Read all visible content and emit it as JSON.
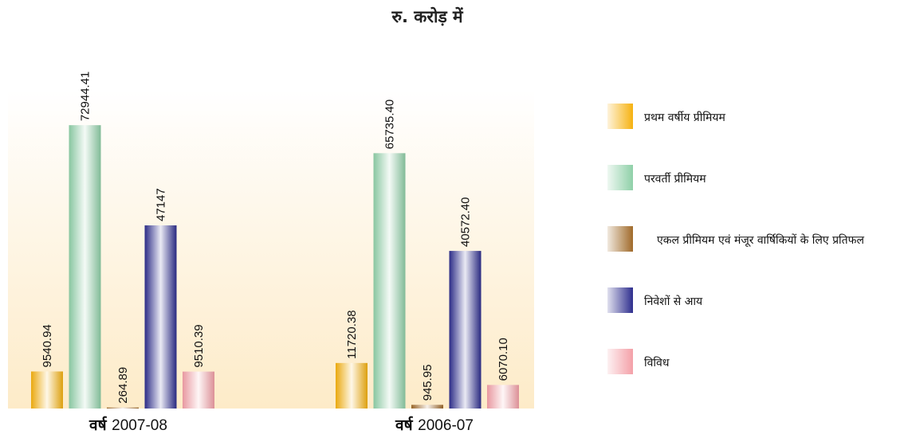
{
  "chart_data": {
    "type": "bar",
    "title": "रु. करोड़ में",
    "category_prefix": "वर्ष",
    "categories": [
      "2007-08",
      "2006-07"
    ],
    "ylim": [
      0,
      82000
    ],
    "grid": false,
    "legend_position": "right",
    "series": [
      {
        "name": "प्रथम वर्षीय प्रीमियम",
        "values": [
          9540.94,
          11720.38
        ],
        "labels": [
          "9540.94",
          "11720.38"
        ],
        "color": "#f6b210"
      },
      {
        "name": "परवर्ती प्रीमियम",
        "values": [
          72944.41,
          65735.4
        ],
        "labels": [
          "72944.41",
          "65735.40"
        ],
        "color": "#8fd0a8"
      },
      {
        "name": "एकल प्रीमियम एवं मंजूर वार्षिकियों के लिए प्रतिफल",
        "values": [
          264.89,
          945.95
        ],
        "labels": [
          "264.89",
          "945.95"
        ],
        "color": "#a06a2a"
      },
      {
        "name": "निवेशों से आय",
        "values": [
          47147,
          40572.4
        ],
        "labels": [
          "47147",
          "40572.40"
        ],
        "color": "#2e2e8e"
      },
      {
        "name": "विविध",
        "values": [
          9510.39,
          6070.1
        ],
        "labels": [
          "9510.39",
          "6070.10"
        ],
        "color": "#f4a0a8"
      }
    ]
  }
}
